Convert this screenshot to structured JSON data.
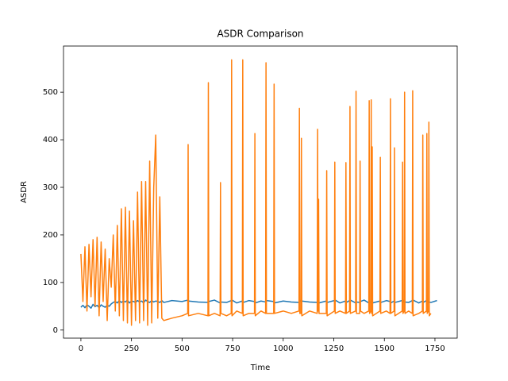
{
  "chart_data": {
    "type": "line",
    "title": "ASDR Comparison",
    "x_label": "Time",
    "y_label": "ASDR",
    "x": [
      0,
      10,
      20,
      30,
      40,
      50,
      60,
      70,
      80,
      90,
      100,
      110,
      120,
      130,
      140,
      150,
      160,
      170,
      180,
      190,
      200,
      210,
      220,
      230,
      240,
      250,
      260,
      270,
      280,
      290,
      300,
      310,
      320,
      330,
      340,
      350,
      360,
      370,
      380,
      390,
      400,
      410,
      450,
      500,
      528,
      530,
      532,
      580,
      628,
      630,
      632,
      660,
      688,
      690,
      692,
      720,
      743,
      745,
      747,
      770,
      798,
      800,
      802,
      830,
      858,
      860,
      862,
      890,
      913,
      915,
      917,
      953,
      955,
      957,
      1000,
      1040,
      1078,
      1080,
      1082,
      1088,
      1090,
      1092,
      1130,
      1168,
      1170,
      1172,
      1175,
      1177,
      1213,
      1215,
      1217,
      1253,
      1255,
      1257,
      1280,
      1308,
      1310,
      1312,
      1328,
      1330,
      1332,
      1358,
      1360,
      1362,
      1378,
      1380,
      1382,
      1400,
      1423,
      1425,
      1427,
      1433,
      1435,
      1437,
      1440,
      1442,
      1478,
      1480,
      1482,
      1510,
      1528,
      1530,
      1532,
      1548,
      1550,
      1552,
      1588,
      1590,
      1592,
      1598,
      1600,
      1602,
      1620,
      1638,
      1640,
      1642,
      1670,
      1688,
      1690,
      1692,
      1708,
      1710,
      1712,
      1718,
      1720,
      1722,
      1730,
      1760
    ],
    "series": [
      {
        "name": "blue",
        "color": "#1f77b4",
        "values": [
          48,
          52,
          47,
          53,
          50,
          46,
          54,
          49,
          52,
          47,
          53,
          50,
          48,
          52,
          50,
          55,
          58,
          60,
          57,
          62,
          58,
          61,
          59,
          63,
          57,
          61,
          60,
          58,
          62,
          59,
          61,
          57,
          63,
          60,
          58,
          62,
          59,
          61,
          60,
          58,
          62,
          58,
          62,
          60,
          63,
          57,
          61,
          59,
          58,
          62,
          60,
          63,
          57,
          61,
          59,
          58,
          62,
          60,
          63,
          57,
          61,
          59,
          58,
          62,
          60,
          63,
          57,
          61,
          59,
          58,
          62,
          60,
          63,
          57,
          61,
          59,
          58,
          62,
          60,
          63,
          57,
          61,
          59,
          58,
          62,
          60,
          63,
          57,
          61,
          59,
          58,
          62,
          60,
          63,
          57,
          61,
          59,
          58,
          62,
          60,
          63,
          57,
          61,
          59,
          58,
          62,
          60,
          63,
          57,
          61,
          59,
          58,
          62,
          60,
          63,
          57,
          61,
          59,
          58,
          62,
          60,
          63,
          57,
          61,
          59,
          58,
          62,
          60,
          63,
          57,
          61,
          59,
          58,
          62,
          60,
          63,
          57,
          61,
          59,
          58,
          62,
          60,
          63,
          57,
          61,
          59,
          58,
          62
        ]
      },
      {
        "name": "orange",
        "color": "#ff7f0e",
        "values": [
          160,
          60,
          175,
          40,
          180,
          70,
          190,
          50,
          195,
          30,
          185,
          60,
          170,
          20,
          150,
          90,
          200,
          40,
          220,
          30,
          255,
          20,
          258,
          15,
          250,
          10,
          230,
          20,
          290,
          15,
          312,
          20,
          312,
          10,
          355,
          15,
          300,
          410,
          25,
          280,
          25,
          20,
          25,
          30,
          35,
          390,
          30,
          35,
          30,
          520,
          30,
          35,
          30,
          310,
          35,
          30,
          35,
          568,
          30,
          40,
          35,
          568,
          30,
          35,
          35,
          413,
          30,
          40,
          35,
          562,
          35,
          35,
          517,
          35,
          40,
          35,
          40,
          466,
          35,
          35,
          403,
          30,
          40,
          35,
          422,
          40,
          275,
          35,
          35,
          335,
          30,
          40,
          353,
          35,
          40,
          35,
          352,
          35,
          40,
          470,
          35,
          40,
          502,
          35,
          35,
          355,
          40,
          35,
          40,
          482,
          35,
          40,
          484,
          35,
          385,
          30,
          40,
          363,
          35,
          40,
          35,
          486,
          35,
          40,
          383,
          30,
          40,
          353,
          35,
          40,
          500,
          35,
          40,
          35,
          503,
          30,
          35,
          40,
          410,
          35,
          40,
          413,
          35,
          40,
          437,
          30,
          35,
          null
        ]
      }
    ],
    "xlim": [
      -86,
      1860
    ],
    "ylim": [
      -17,
      597
    ],
    "xticks": [
      0,
      250,
      500,
      750,
      1000,
      1250,
      1500,
      1750
    ],
    "yticks": [
      0,
      100,
      200,
      300,
      400,
      500
    ]
  }
}
